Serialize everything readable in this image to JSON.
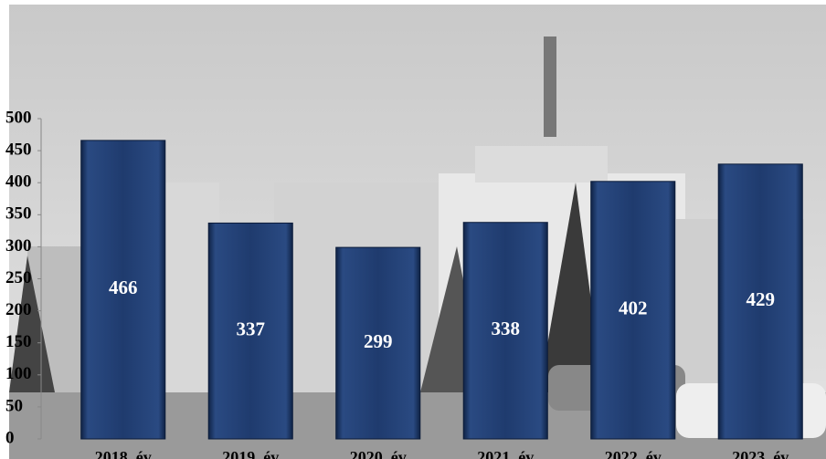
{
  "chart_data": {
    "type": "bar",
    "categories": [
      "2018. év",
      "2019. év",
      "2020. év",
      "2021. év",
      "2022. év",
      "2023. év"
    ],
    "values": [
      466,
      337,
      299,
      338,
      402,
      429
    ],
    "color": "#1f3b6e",
    "ylim": [
      0,
      500
    ],
    "yticks": [
      0,
      50,
      100,
      150,
      200,
      250,
      300,
      350,
      400,
      450,
      500
    ],
    "grid": false
  }
}
